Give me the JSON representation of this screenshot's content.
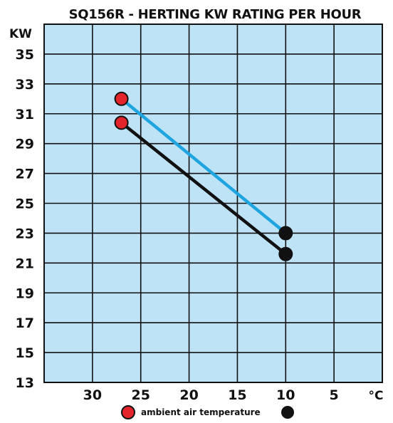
{
  "chart_data": {
    "type": "line",
    "title": "SQ156R - HERTING KW RATING PER HOUR",
    "ylabel": "KW",
    "xlabel": "°C",
    "legend_text": "ambient air temperature",
    "legend_placement": "bottom",
    "grid": true,
    "xlim": [
      35,
      0
    ],
    "ylim": [
      13,
      37
    ],
    "x_ticks": [
      "30",
      "25",
      "20",
      "15",
      "10",
      "5"
    ],
    "y_ticks": [
      "35",
      "33",
      "31",
      "29",
      "27",
      "25",
      "23",
      "21",
      "19",
      "17",
      "15",
      "13"
    ],
    "series": [
      {
        "color": "#1ea5e0",
        "marker_start_color": "#e3242b",
        "marker_end_color": "#111111",
        "x": [
          27,
          10
        ],
        "y": [
          32,
          23
        ]
      },
      {
        "color": "#111111",
        "marker_start_color": "#e3242b",
        "marker_end_color": "#111111",
        "x": [
          27,
          10
        ],
        "y": [
          30.4,
          21.6
        ]
      }
    ],
    "colors": {
      "plot_background": "#bfe3f6",
      "grid": "#111111"
    }
  }
}
